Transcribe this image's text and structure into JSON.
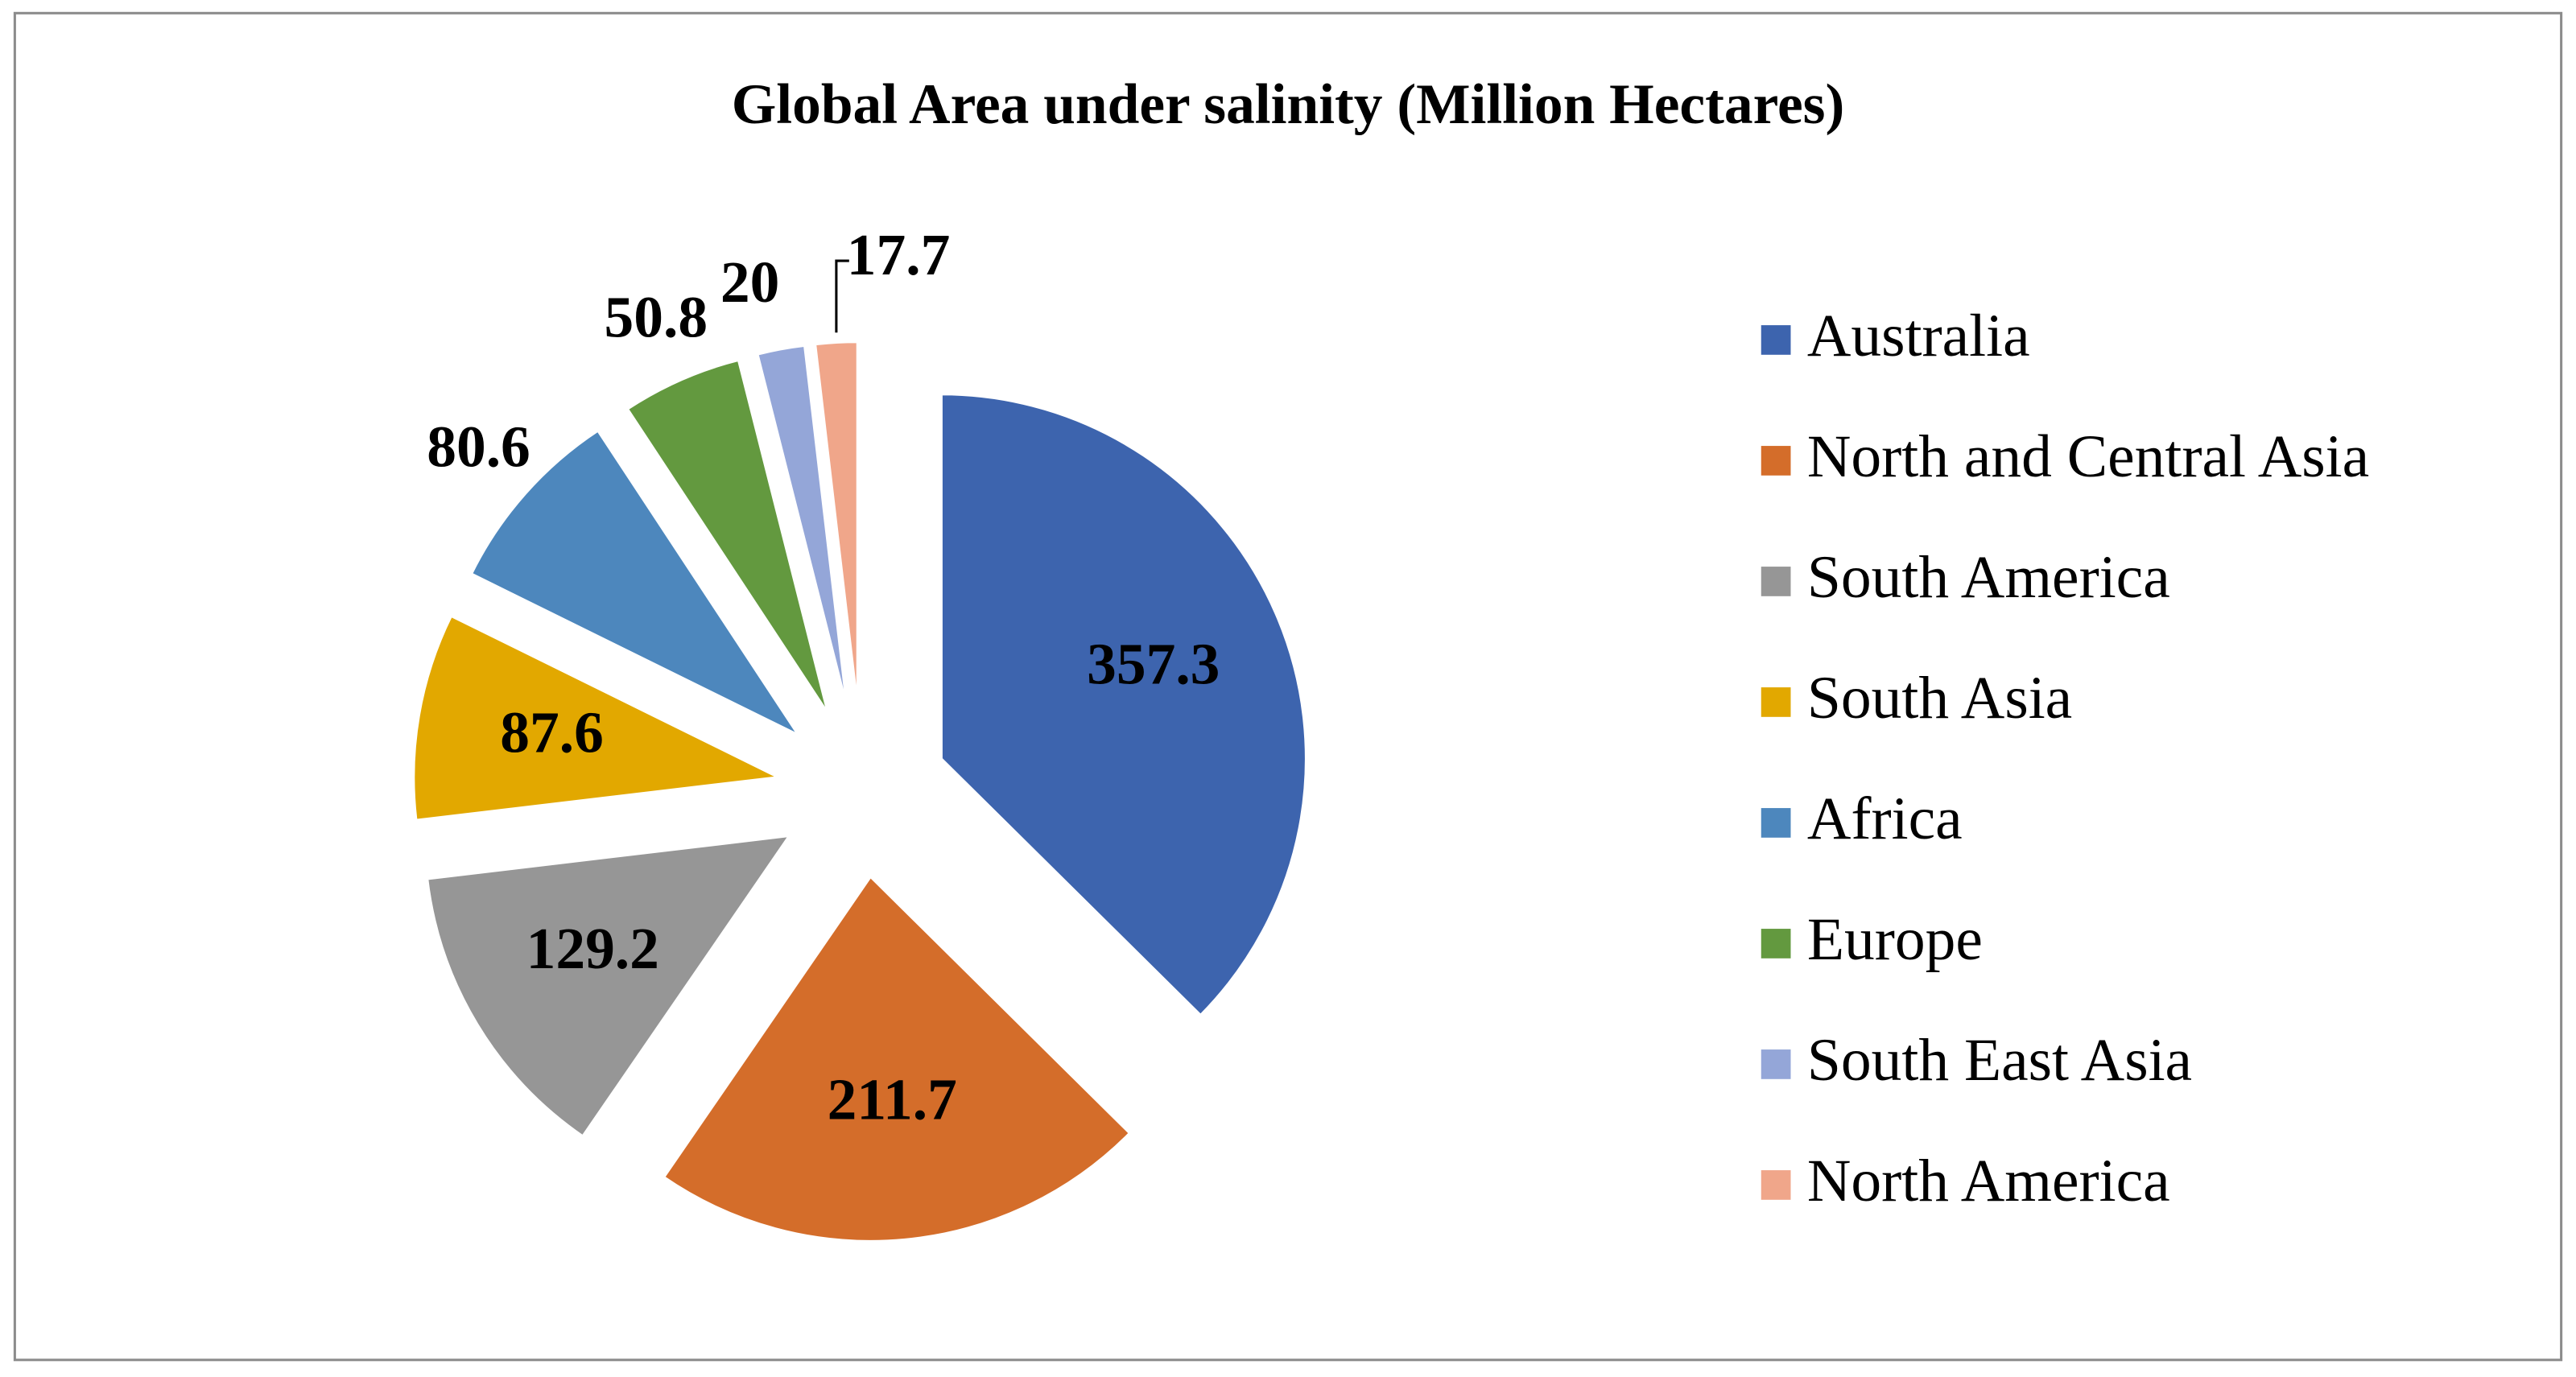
{
  "chart_data": {
    "type": "pie",
    "title": "Global Area under salinity (Million Hectares)",
    "categories": [
      "Australia",
      "North and Central Asia",
      "South America",
      "South Asia",
      "Africa",
      "Europe",
      "South East Asia",
      "North America"
    ],
    "values": [
      357.3,
      211.7,
      129.2,
      87.6,
      80.6,
      50.8,
      20,
      17.7
    ],
    "colors": [
      "#3d64ae",
      "#d46d2a",
      "#969696",
      "#e2a800",
      "#4d87bd",
      "#63993f",
      "#94a6d8",
      "#f0a68a"
    ],
    "legend": "right"
  }
}
